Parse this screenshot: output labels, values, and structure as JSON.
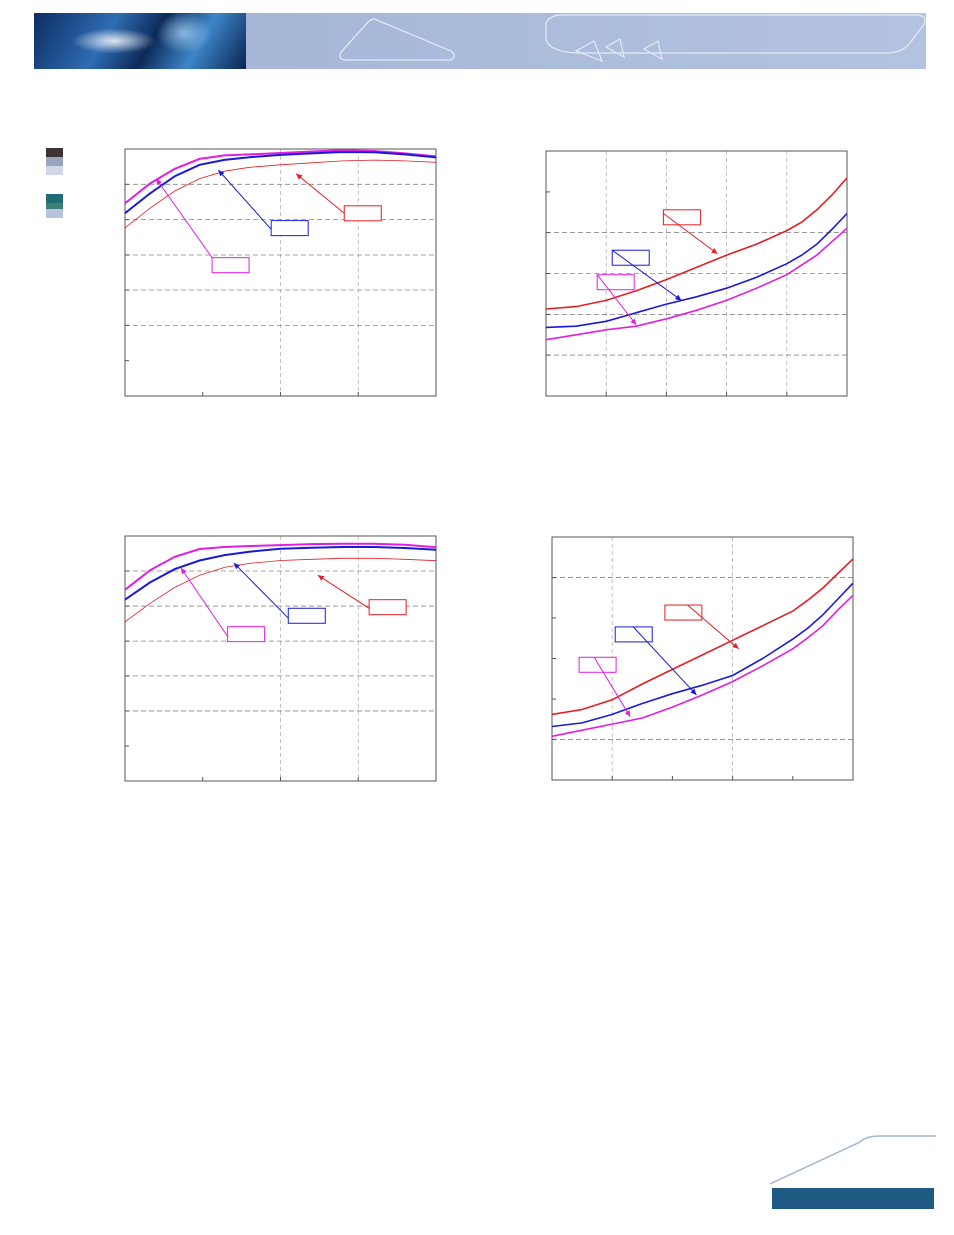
{
  "colors": {
    "banner": "#a9b9d9",
    "footer_bar": "#1e5a82",
    "red": "#e31e24",
    "blue": "#1a1ad6",
    "magenta": "#e11ee1",
    "grid": "#8a8a8a"
  },
  "side_swatches": [
    {
      "color": "#3d3335"
    },
    {
      "color": "#9ba3bd"
    },
    {
      "color": "#d0d7e6"
    },
    {
      "color": "#1f6c74"
    },
    {
      "color": "#3d7f75"
    },
    {
      "color": "#b9c3de"
    }
  ],
  "chart_data": [
    {
      "type": "line",
      "title": "",
      "xlabel": "",
      "ylabel": "",
      "xlim": [
        0,
        100
      ],
      "ylim": [
        0,
        100
      ],
      "x_ticks": [
        0,
        25,
        50,
        75,
        100
      ],
      "y_ticks": [
        0,
        14.3,
        28.6,
        42.9,
        57.1,
        71.4,
        85.7,
        100
      ],
      "x_grid": [
        50,
        75
      ],
      "y_grid": [
        28.6,
        42.9,
        57.1,
        71.4,
        85.7
      ],
      "grid": true,
      "series": [
        {
          "color": "#e11ee1",
          "width": 2,
          "x": [
            0,
            8,
            16,
            24,
            32,
            40,
            50,
            60,
            70,
            80,
            90,
            100
          ],
          "y": [
            78,
            86,
            92,
            96,
            97.4,
            97.8,
            98.4,
            99,
            99.5,
            99.2,
            98.2,
            97
          ]
        },
        {
          "color": "#1a1ad6",
          "width": 2,
          "x": [
            0,
            8,
            16,
            24,
            32,
            40,
            50,
            60,
            70,
            80,
            90,
            100
          ],
          "y": [
            74,
            82,
            89,
            93.6,
            95.6,
            96.7,
            97.6,
            98.2,
            98.8,
            98.7,
            97.8,
            96.6
          ]
        },
        {
          "color": "#e31e24",
          "width": 0.8,
          "x": [
            0,
            8,
            16,
            24,
            32,
            40,
            50,
            60,
            70,
            80,
            90,
            100
          ],
          "y": [
            68,
            76,
            83,
            88,
            91,
            92.6,
            93.6,
            94.4,
            95.2,
            95.5,
            95.2,
            94.6
          ]
        }
      ],
      "annotations": [
        {
          "color": "#e31e24",
          "box": [
            70.5,
            77
          ],
          "elbow": [
            70.5,
            74
          ],
          "tip": [
            55,
            90
          ]
        },
        {
          "color": "#1a1ad6",
          "box": [
            47,
            71
          ],
          "elbow": [
            47,
            67.5
          ],
          "tip": [
            30,
            91.5
          ]
        },
        {
          "color": "#e11ee1",
          "box": [
            28,
            56
          ],
          "elbow": [
            28,
            56
          ],
          "tip": [
            10,
            88
          ]
        }
      ]
    },
    {
      "type": "line",
      "title": "",
      "xlabel": "",
      "ylabel": "",
      "xlim": [
        0,
        100
      ],
      "ylim": [
        0,
        100
      ],
      "x_ticks": [
        0,
        20,
        40,
        60,
        80,
        100
      ],
      "y_ticks": [
        0,
        16.7,
        33.3,
        50,
        66.7,
        83.3,
        100
      ],
      "x_grid": [
        20,
        40,
        60,
        80
      ],
      "y_grid": [
        16.7,
        33.3,
        50,
        66.7
      ],
      "grid": true,
      "series": [
        {
          "color": "#e31e24",
          "width": 1.6,
          "x": [
            0,
            10,
            20,
            30,
            40,
            50,
            60,
            70,
            80,
            85,
            90,
            95,
            100
          ],
          "y": [
            35.5,
            36.5,
            39,
            43,
            47.5,
            52.5,
            57.5,
            62,
            67.5,
            71,
            76,
            82,
            89
          ]
        },
        {
          "color": "#1a1ad6",
          "width": 1.6,
          "x": [
            0,
            10,
            20,
            30,
            40,
            50,
            60,
            70,
            80,
            85,
            90,
            95,
            100
          ],
          "y": [
            28,
            28.5,
            30.5,
            34,
            37.5,
            40.5,
            44,
            48.5,
            54,
            57.5,
            62,
            68,
            74.5
          ]
        },
        {
          "color": "#e11ee1",
          "width": 1.6,
          "x": [
            0,
            10,
            20,
            30,
            40,
            50,
            60,
            70,
            80,
            85,
            90,
            95,
            100
          ],
          "y": [
            23,
            25,
            27,
            28.5,
            31.5,
            35,
            39,
            44,
            49.5,
            53.5,
            57.5,
            63,
            68.5
          ]
        }
      ],
      "annotations": [
        {
          "color": "#e31e24",
          "box": [
            39,
            76
          ],
          "elbow": [
            39,
            74.5
          ],
          "tip": [
            57,
            58
          ]
        },
        {
          "color": "#1a1ad6",
          "box": [
            22,
            59.5
          ],
          "elbow": [
            22,
            59.5
          ],
          "tip": [
            45,
            39
          ]
        },
        {
          "color": "#e11ee1",
          "box": [
            17,
            49.5
          ],
          "elbow": [
            17,
            49.5
          ],
          "tip": [
            30,
            29
          ]
        }
      ]
    },
    {
      "type": "line",
      "title": "",
      "xlabel": "",
      "ylabel": "",
      "xlim": [
        0,
        100
      ],
      "ylim": [
        0,
        100
      ],
      "x_ticks": [
        0,
        25,
        50,
        75,
        100
      ],
      "y_ticks": [
        0,
        14.3,
        28.6,
        42.9,
        57.1,
        71.4,
        85.7,
        100
      ],
      "x_grid": [
        50,
        75
      ],
      "y_grid": [
        28.6,
        42.9,
        57.1,
        71.4,
        85.7
      ],
      "grid": true,
      "series": [
        {
          "color": "#e11ee1",
          "width": 2,
          "x": [
            0,
            8,
            16,
            24,
            32,
            40,
            50,
            60,
            70,
            80,
            90,
            100
          ],
          "y": [
            78,
            86,
            91.5,
            94.7,
            95.5,
            95.9,
            96.3,
            96.7,
            96.8,
            96.8,
            96.4,
            95.4
          ]
        },
        {
          "color": "#1a1ad6",
          "width": 2,
          "x": [
            0,
            8,
            16,
            24,
            32,
            40,
            50,
            60,
            70,
            80,
            90,
            100
          ],
          "y": [
            74,
            81,
            86.5,
            90,
            92.2,
            93.6,
            94.8,
            95.2,
            95.5,
            95.5,
            95.1,
            94.4
          ]
        },
        {
          "color": "#e31e24",
          "width": 0.8,
          "x": [
            0,
            8,
            16,
            24,
            32,
            40,
            50,
            60,
            70,
            80,
            90,
            100
          ],
          "y": [
            65,
            72.5,
            79,
            84,
            87.2,
            88.8,
            90,
            90.5,
            90.9,
            90.9,
            90.5,
            89.9
          ]
        }
      ],
      "annotations": [
        {
          "color": "#e31e24",
          "box": [
            78.5,
            74
          ],
          "elbow": [
            78.5,
            70.5
          ],
          "tip": [
            62,
            84
          ]
        },
        {
          "color": "#1a1ad6",
          "box": [
            52.5,
            70.5
          ],
          "elbow": [
            52.5,
            66.5
          ],
          "tip": [
            35,
            89
          ]
        },
        {
          "color": "#e11ee1",
          "box": [
            33,
            63
          ],
          "elbow": [
            33,
            59
          ],
          "tip": [
            18,
            87
          ]
        }
      ]
    },
    {
      "type": "line",
      "title": "",
      "xlabel": "",
      "ylabel": "",
      "xlim": [
        0,
        100
      ],
      "ylim": [
        0,
        100
      ],
      "x_ticks": [
        0,
        20,
        40,
        60,
        80,
        100
      ],
      "y_ticks": [
        0,
        16.7,
        33.3,
        50,
        66.7,
        83.3,
        100
      ],
      "x_grid": [
        20,
        60
      ],
      "y_grid": [
        16.7,
        83.3
      ],
      "grid": true,
      "series": [
        {
          "color": "#e31e24",
          "width": 1.6,
          "x": [
            0,
            10,
            20,
            30,
            40,
            50,
            60,
            70,
            80,
            85,
            90,
            95,
            100
          ],
          "y": [
            27,
            29,
            33,
            39.5,
            45.5,
            51.5,
            57.5,
            63.5,
            69.5,
            74,
            79,
            85,
            91
          ]
        },
        {
          "color": "#1a1ad6",
          "width": 1.6,
          "x": [
            0,
            10,
            20,
            30,
            40,
            50,
            60,
            70,
            80,
            85,
            90,
            95,
            100
          ],
          "y": [
            22,
            23.5,
            27,
            31.5,
            35.5,
            39,
            43,
            50,
            58,
            62.5,
            68,
            74.5,
            81
          ]
        },
        {
          "color": "#e11ee1",
          "width": 1.6,
          "x": [
            0,
            10,
            20,
            30,
            40,
            50,
            60,
            70,
            80,
            85,
            90,
            95,
            100
          ],
          "y": [
            18,
            20.5,
            23,
            25.5,
            30,
            35,
            40.5,
            47,
            54,
            58.5,
            63.5,
            70,
            76
          ]
        }
      ],
      "annotations": [
        {
          "color": "#e31e24",
          "box": [
            37.5,
            72
          ],
          "elbow": [
            45,
            72
          ],
          "tip": [
            62,
            54
          ]
        },
        {
          "color": "#1a1ad6",
          "box": [
            21,
            63
          ],
          "elbow": [
            27,
            63
          ],
          "tip": [
            48,
            35
          ]
        },
        {
          "color": "#e11ee1",
          "box": [
            9,
            50.5
          ],
          "elbow": [
            14,
            50.5
          ],
          "tip": [
            26,
            26
          ]
        }
      ]
    }
  ]
}
